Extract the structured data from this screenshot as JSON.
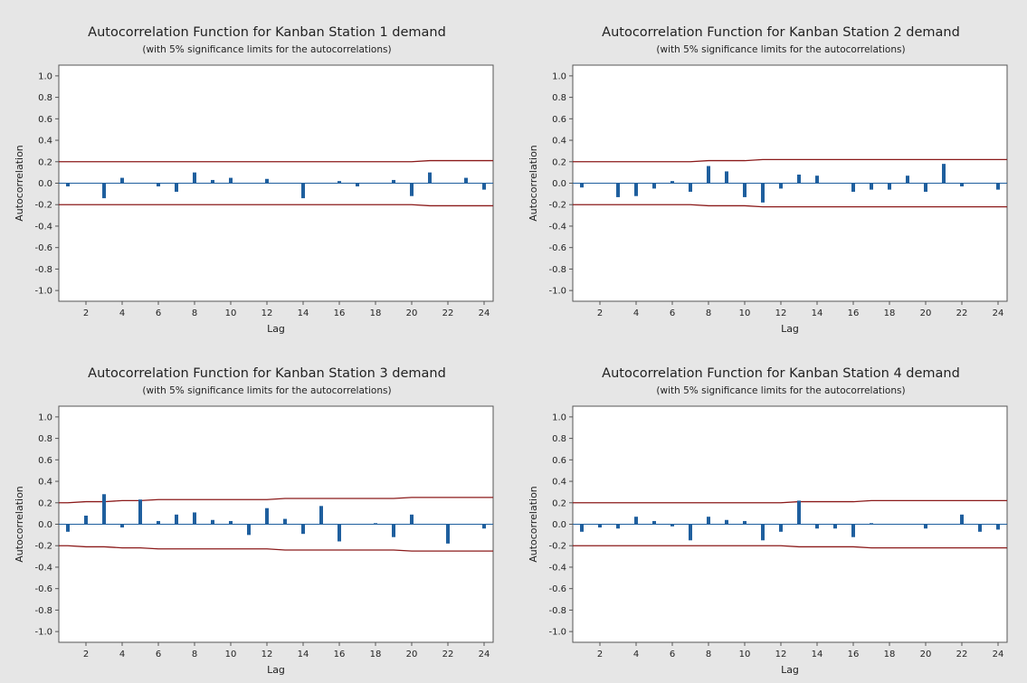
{
  "figure": {
    "background": "#e6e6e6",
    "plot_background": "#ffffff",
    "bar_color": "#1f5f9e",
    "limit_color": "#8b1a1a",
    "axis_color": "#555555"
  },
  "chart_data": [
    {
      "type": "bar",
      "title": "Autocorrelation Function for Kanban Station 1 demand",
      "subtitle": "(with 5% significance limits for the autocorrelations)",
      "xlabel": "Lag",
      "ylabel": "Autocorrelation",
      "xlim": [
        0.5,
        24.5
      ],
      "ylim": [
        -1.1,
        1.1
      ],
      "x_ticks": [
        2,
        4,
        6,
        8,
        10,
        12,
        14,
        16,
        18,
        20,
        22,
        24
      ],
      "y_ticks": [
        "1.0",
        "0.8",
        "0.6",
        "0.4",
        "0.2",
        "0.0",
        "-0.2",
        "-0.4",
        "-0.6",
        "-0.8",
        "-1.0"
      ],
      "lags": [
        1,
        2,
        3,
        4,
        5,
        6,
        7,
        8,
        9,
        10,
        11,
        12,
        13,
        14,
        15,
        16,
        17,
        18,
        19,
        20,
        21,
        22,
        23,
        24
      ],
      "values": [
        -0.03,
        0.0,
        -0.14,
        0.05,
        0.0,
        -0.03,
        -0.08,
        0.1,
        0.03,
        0.05,
        0.0,
        0.04,
        0.0,
        -0.14,
        0.0,
        0.02,
        -0.03,
        0.0,
        0.03,
        -0.12,
        0.1,
        0.0,
        0.05,
        -0.06
      ],
      "upper_limit": [
        0.2,
        0.2,
        0.2,
        0.2,
        0.2,
        0.2,
        0.2,
        0.2,
        0.2,
        0.2,
        0.2,
        0.2,
        0.2,
        0.2,
        0.2,
        0.2,
        0.2,
        0.2,
        0.2,
        0.2,
        0.21,
        0.21,
        0.21,
        0.21
      ],
      "lower_limit": [
        -0.2,
        -0.2,
        -0.2,
        -0.2,
        -0.2,
        -0.2,
        -0.2,
        -0.2,
        -0.2,
        -0.2,
        -0.2,
        -0.2,
        -0.2,
        -0.2,
        -0.2,
        -0.2,
        -0.2,
        -0.2,
        -0.2,
        -0.2,
        -0.21,
        -0.21,
        -0.21,
        -0.21
      ],
      "grid": false
    },
    {
      "type": "bar",
      "title": "Autocorrelation Function for Kanban Station 2 demand",
      "subtitle": "(with 5% significance limits for the autocorrelations)",
      "xlabel": "Lag",
      "ylabel": "Autocorrelation",
      "xlim": [
        0.5,
        24.5
      ],
      "ylim": [
        -1.1,
        1.1
      ],
      "x_ticks": [
        2,
        4,
        6,
        8,
        10,
        12,
        14,
        16,
        18,
        20,
        22,
        24
      ],
      "y_ticks": [
        "1.0",
        "0.8",
        "0.6",
        "0.4",
        "0.2",
        "0.0",
        "-0.2",
        "-0.4",
        "-0.6",
        "-0.8",
        "-1.0"
      ],
      "lags": [
        1,
        2,
        3,
        4,
        5,
        6,
        7,
        8,
        9,
        10,
        11,
        12,
        13,
        14,
        15,
        16,
        17,
        18,
        19,
        20,
        21,
        22,
        23,
        24
      ],
      "values": [
        -0.04,
        0.0,
        -0.13,
        -0.12,
        -0.05,
        0.02,
        -0.08,
        0.16,
        0.11,
        -0.13,
        -0.18,
        -0.05,
        0.08,
        0.07,
        0.0,
        -0.08,
        -0.06,
        -0.06,
        0.07,
        -0.08,
        0.18,
        -0.03,
        0.0,
        -0.06
      ],
      "upper_limit": [
        0.2,
        0.2,
        0.2,
        0.2,
        0.2,
        0.2,
        0.2,
        0.21,
        0.21,
        0.21,
        0.22,
        0.22,
        0.22,
        0.22,
        0.22,
        0.22,
        0.22,
        0.22,
        0.22,
        0.22,
        0.22,
        0.22,
        0.22,
        0.22
      ],
      "lower_limit": [
        -0.2,
        -0.2,
        -0.2,
        -0.2,
        -0.2,
        -0.2,
        -0.2,
        -0.21,
        -0.21,
        -0.21,
        -0.22,
        -0.22,
        -0.22,
        -0.22,
        -0.22,
        -0.22,
        -0.22,
        -0.22,
        -0.22,
        -0.22,
        -0.22,
        -0.22,
        -0.22,
        -0.22
      ],
      "grid": false
    },
    {
      "type": "bar",
      "title": "Autocorrelation Function for Kanban Station 3 demand",
      "subtitle": "(with 5% significance limits for the autocorrelations)",
      "xlabel": "Lag",
      "ylabel": "Autocorrelation",
      "xlim": [
        0.5,
        24.5
      ],
      "ylim": [
        -1.1,
        1.1
      ],
      "x_ticks": [
        2,
        4,
        6,
        8,
        10,
        12,
        14,
        16,
        18,
        20,
        22,
        24
      ],
      "y_ticks": [
        "1.0",
        "0.8",
        "0.6",
        "0.4",
        "0.2",
        "0.0",
        "-0.2",
        "-0.4",
        "-0.6",
        "-0.8",
        "-1.0"
      ],
      "lags": [
        1,
        2,
        3,
        4,
        5,
        6,
        7,
        8,
        9,
        10,
        11,
        12,
        13,
        14,
        15,
        16,
        17,
        18,
        19,
        20,
        21,
        22,
        23,
        24
      ],
      "values": [
        -0.07,
        0.08,
        0.28,
        -0.03,
        0.23,
        0.03,
        0.09,
        0.11,
        0.04,
        0.03,
        -0.1,
        0.15,
        0.05,
        -0.09,
        0.17,
        -0.16,
        0.0,
        0.01,
        -0.12,
        0.09,
        0.0,
        -0.18,
        0.0,
        -0.04
      ],
      "upper_limit": [
        0.2,
        0.21,
        0.21,
        0.22,
        0.22,
        0.23,
        0.23,
        0.23,
        0.23,
        0.23,
        0.23,
        0.23,
        0.24,
        0.24,
        0.24,
        0.24,
        0.24,
        0.24,
        0.24,
        0.25,
        0.25,
        0.25,
        0.25,
        0.25
      ],
      "lower_limit": [
        -0.2,
        -0.21,
        -0.21,
        -0.22,
        -0.22,
        -0.23,
        -0.23,
        -0.23,
        -0.23,
        -0.23,
        -0.23,
        -0.23,
        -0.24,
        -0.24,
        -0.24,
        -0.24,
        -0.24,
        -0.24,
        -0.24,
        -0.25,
        -0.25,
        -0.25,
        -0.25,
        -0.25
      ],
      "grid": false
    },
    {
      "type": "bar",
      "title": "Autocorrelation Function for Kanban Station 4 demand",
      "subtitle": "(with 5% significance limits for the autocorrelations)",
      "xlabel": "Lag",
      "ylabel": "Autocorrelation",
      "xlim": [
        0.5,
        24.5
      ],
      "ylim": [
        -1.1,
        1.1
      ],
      "x_ticks": [
        2,
        4,
        6,
        8,
        10,
        12,
        14,
        16,
        18,
        20,
        22,
        24
      ],
      "y_ticks": [
        "1.0",
        "0.8",
        "0.6",
        "0.4",
        "0.2",
        "0.0",
        "-0.2",
        "-0.4",
        "-0.6",
        "-0.8",
        "-1.0"
      ],
      "lags": [
        1,
        2,
        3,
        4,
        5,
        6,
        7,
        8,
        9,
        10,
        11,
        12,
        13,
        14,
        15,
        16,
        17,
        18,
        19,
        20,
        21,
        22,
        23,
        24
      ],
      "values": [
        -0.07,
        -0.03,
        -0.04,
        0.07,
        0.03,
        -0.02,
        -0.15,
        0.07,
        0.04,
        0.03,
        -0.15,
        -0.07,
        0.22,
        -0.04,
        -0.04,
        -0.12,
        0.01,
        0.0,
        0.0,
        -0.04,
        0.0,
        0.09,
        -0.07,
        -0.05
      ],
      "upper_limit": [
        0.2,
        0.2,
        0.2,
        0.2,
        0.2,
        0.2,
        0.2,
        0.2,
        0.2,
        0.2,
        0.2,
        0.2,
        0.21,
        0.21,
        0.21,
        0.21,
        0.22,
        0.22,
        0.22,
        0.22,
        0.22,
        0.22,
        0.22,
        0.22
      ],
      "lower_limit": [
        -0.2,
        -0.2,
        -0.2,
        -0.2,
        -0.2,
        -0.2,
        -0.2,
        -0.2,
        -0.2,
        -0.2,
        -0.2,
        -0.2,
        -0.21,
        -0.21,
        -0.21,
        -0.21,
        -0.22,
        -0.22,
        -0.22,
        -0.22,
        -0.22,
        -0.22,
        -0.22,
        -0.22
      ],
      "grid": false
    }
  ]
}
